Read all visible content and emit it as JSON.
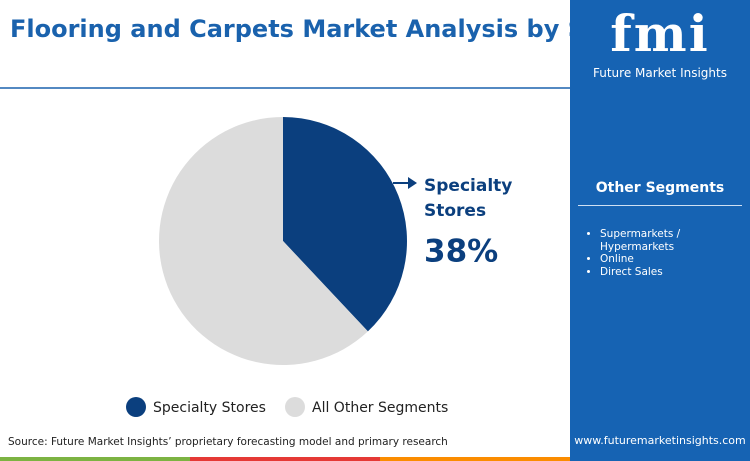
{
  "chart_data": {
    "type": "pie",
    "title": "Flooring and Carpets Market Analysis by Sales Channel",
    "categories": [
      "Specialty Stores",
      "All Other Segments"
    ],
    "values": [
      38,
      62
    ],
    "value_labels": [
      "38%",
      null
    ],
    "colors": [
      "#0b3f7e",
      "#dcdcdc"
    ],
    "legend": "bottom",
    "source": "Source: Future Market Insights’ proprietary forecasting model and primary research"
  },
  "sidebar": {
    "logo": "fmi",
    "brand": "Future Market Insights",
    "heading": "Other Segments",
    "items": [
      "Supermarkets / Hypermarkets",
      "Online",
      "Direct Sales"
    ],
    "website": "www.futuremarketinsights.com"
  }
}
